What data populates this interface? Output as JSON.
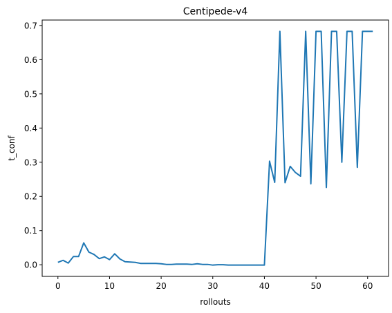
{
  "chart_data": {
    "type": "line",
    "title": "Centipede-v4",
    "xlabel": "rollouts",
    "ylabel": "t_conf",
    "xlim": [
      -3.05,
      64.05
    ],
    "ylim": [
      -0.034,
      0.716
    ],
    "xticks": [
      0,
      10,
      20,
      30,
      40,
      50,
      60
    ],
    "yticks": [
      0.0,
      0.1,
      0.2,
      0.3,
      0.4,
      0.5,
      0.6,
      0.7
    ],
    "xtick_labels": [
      "0",
      "10",
      "20",
      "30",
      "40",
      "50",
      "60"
    ],
    "ytick_labels": [
      "0.0",
      "0.1",
      "0.2",
      "0.3",
      "0.4",
      "0.5",
      "0.6",
      "0.7"
    ],
    "grid": false,
    "legend": "none",
    "series": [
      {
        "color": "#1f77b4",
        "x": [
          0,
          1,
          2,
          3,
          4,
          5,
          6,
          7,
          8,
          9,
          10,
          11,
          12,
          13,
          14,
          15,
          16,
          17,
          18,
          19,
          20,
          21,
          22,
          23,
          24,
          25,
          26,
          27,
          28,
          29,
          30,
          31,
          32,
          33,
          34,
          35,
          36,
          37,
          38,
          39,
          40,
          41,
          42,
          43,
          44,
          45,
          46,
          47,
          48,
          49,
          50,
          51,
          52,
          53,
          54,
          55,
          56,
          57,
          58,
          59,
          60,
          61
        ],
        "values": [
          0.007,
          0.013,
          0.005,
          0.024,
          0.024,
          0.064,
          0.037,
          0.03,
          0.018,
          0.023,
          0.015,
          0.032,
          0.017,
          0.009,
          0.008,
          0.007,
          0.004,
          0.004,
          0.004,
          0.004,
          0.003,
          0.001,
          0.001,
          0.002,
          0.002,
          0.002,
          0.001,
          0.003,
          0.001,
          0.001,
          -0.001,
          0.0,
          0.0,
          -0.001,
          -0.001,
          -0.001,
          -0.001,
          -0.001,
          -0.001,
          -0.001,
          -0.001,
          0.303,
          0.241,
          0.683,
          0.24,
          0.288,
          0.27,
          0.259,
          0.683,
          0.237,
          0.683,
          0.683,
          0.226,
          0.683,
          0.683,
          0.3,
          0.683,
          0.683,
          0.285,
          0.683,
          0.683,
          0.683
        ]
      }
    ]
  }
}
